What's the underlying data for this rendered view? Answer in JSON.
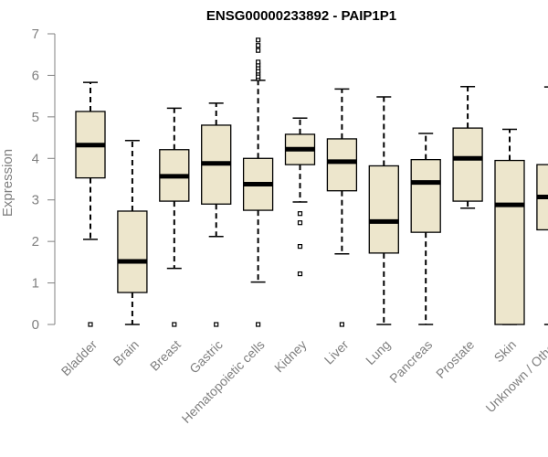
{
  "chart_data": {
    "type": "boxplot",
    "title": "ENSG00000233892 - PAIP1P1",
    "xlabel": "",
    "ylabel": "Expression",
    "ylim": [
      0,
      7
    ],
    "yticks": [
      0,
      1,
      2,
      3,
      4,
      5,
      6,
      7
    ],
    "colors": {
      "box_fill": "#EDE6CC",
      "stroke": "#000000",
      "axis": "#808080",
      "text": "#808080"
    },
    "categories": [
      "Bladder",
      "Brain",
      "Breast",
      "Gastric",
      "Hematopoietic cells",
      "Kidney",
      "Liver",
      "Lung",
      "Pancreas",
      "Prostate",
      "Skin",
      "Unknown / Other"
    ],
    "boxes": [
      {
        "name": "Bladder",
        "whisker_low": 2.05,
        "q1": 3.53,
        "median": 4.32,
        "q3": 5.13,
        "whisker_high": 5.83,
        "outliers": [
          0
        ]
      },
      {
        "name": "Brain",
        "whisker_low": 0.0,
        "q1": 0.77,
        "median": 1.52,
        "q3": 2.73,
        "whisker_high": 4.43,
        "outliers": []
      },
      {
        "name": "Breast",
        "whisker_low": 1.35,
        "q1": 2.97,
        "median": 3.57,
        "q3": 4.21,
        "whisker_high": 5.21,
        "outliers": [
          0
        ]
      },
      {
        "name": "Gastric",
        "whisker_low": 2.12,
        "q1": 2.9,
        "median": 3.88,
        "q3": 4.8,
        "whisker_high": 5.33,
        "outliers": [
          0
        ]
      },
      {
        "name": "Hematopoietic cells",
        "whisker_low": 1.02,
        "q1": 2.75,
        "median": 3.38,
        "q3": 4.0,
        "whisker_high": 5.88,
        "outliers": [
          0,
          5.92,
          5.97,
          6.05,
          6.1,
          6.18,
          6.25,
          6.32,
          6.6,
          6.72,
          6.85
        ]
      },
      {
        "name": "Kidney",
        "whisker_low": 2.95,
        "q1": 3.85,
        "median": 4.22,
        "q3": 4.58,
        "whisker_high": 4.97,
        "outliers": [
          2.67,
          2.45,
          1.88,
          1.22
        ]
      },
      {
        "name": "Liver",
        "whisker_low": 1.7,
        "q1": 3.22,
        "median": 3.92,
        "q3": 4.47,
        "whisker_high": 5.67,
        "outliers": [
          0
        ]
      },
      {
        "name": "Lung",
        "whisker_low": 0.0,
        "q1": 1.72,
        "median": 2.48,
        "q3": 3.82,
        "whisker_high": 5.48,
        "outliers": []
      },
      {
        "name": "Pancreas",
        "whisker_low": 0.0,
        "q1": 2.22,
        "median": 3.42,
        "q3": 3.97,
        "whisker_high": 4.6,
        "outliers": []
      },
      {
        "name": "Prostate",
        "whisker_low": 2.8,
        "q1": 2.97,
        "median": 4.0,
        "q3": 4.73,
        "whisker_high": 5.73,
        "outliers": []
      },
      {
        "name": "Skin",
        "whisker_low": 0.0,
        "q1": 0.0,
        "median": 2.88,
        "q3": 3.95,
        "whisker_high": 4.7,
        "outliers": []
      },
      {
        "name": "Unknown / Other",
        "whisker_low": 0.0,
        "q1": 2.28,
        "median": 3.07,
        "q3": 3.85,
        "whisker_high": 5.72,
        "outliers": []
      }
    ]
  }
}
